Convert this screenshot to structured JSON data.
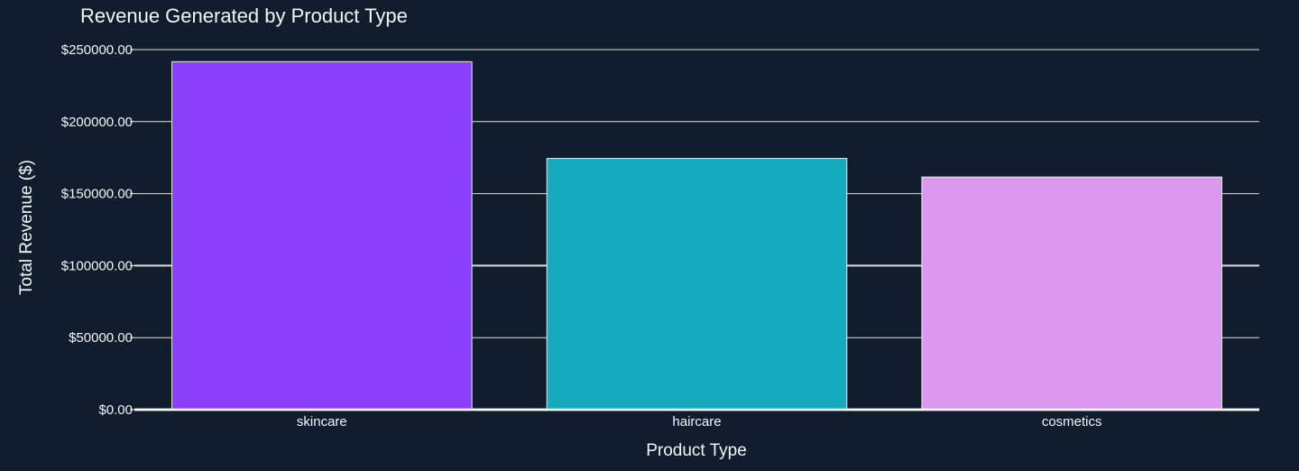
{
  "chart_data": {
    "type": "bar",
    "title": "Revenue Generated by Product Type",
    "xlabel": "Product Type",
    "ylabel": "Total Revenue ($)",
    "categories": [
      "skincare",
      "haircare",
      "cosmetics"
    ],
    "values": [
      241628.16,
      174455.39,
      161521.27
    ],
    "ylim": [
      0,
      250000
    ],
    "yticks": [
      0,
      50000,
      100000,
      150000,
      200000,
      250000
    ],
    "ytick_labels": [
      "$0.00",
      "$50000.00",
      "$100000.00",
      "$150000.00",
      "$200000.00",
      "$250000.00"
    ],
    "bar_colors": [
      "#8a3ff9",
      "#15aabd",
      "#dc97ec"
    ],
    "grid": true,
    "legend": false,
    "theme": {
      "background": "#111c2c",
      "grid_color": "#ffffff",
      "text_color": "#f2f5fa",
      "bar_outline": "#e8edf4"
    }
  }
}
